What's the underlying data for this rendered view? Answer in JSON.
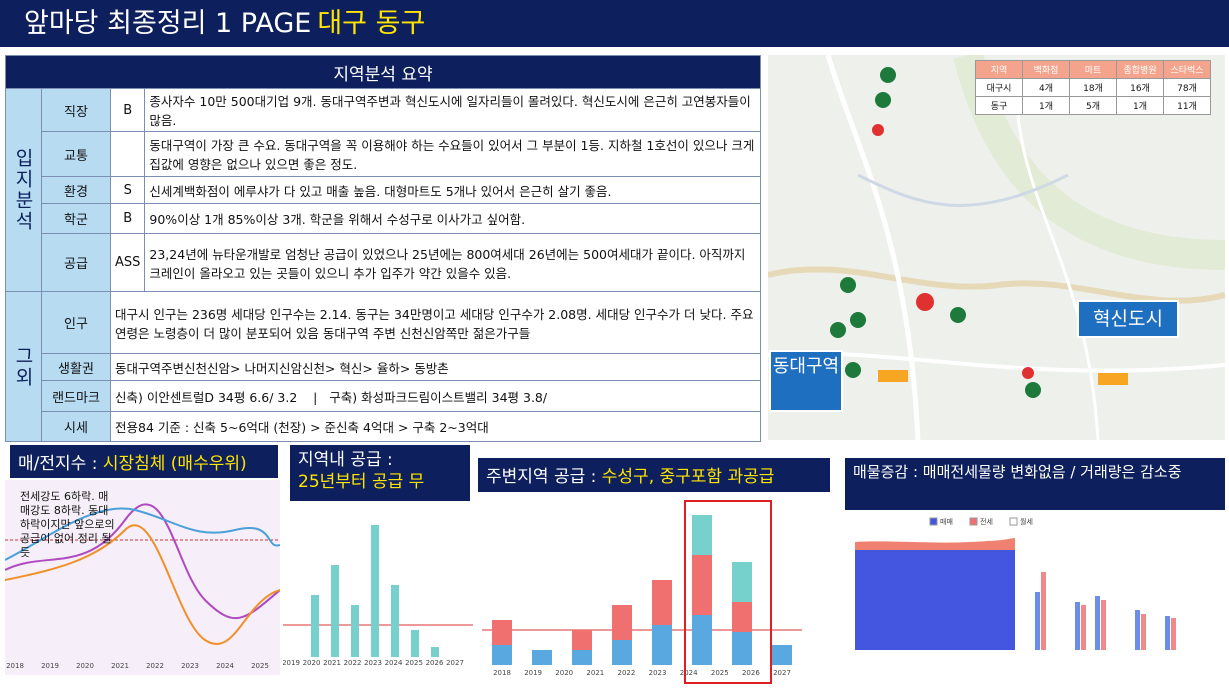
{
  "header": {
    "title": "앞마당 최종정리 1 PAGE",
    "highlight": "대구 동구"
  },
  "summary": {
    "title": "지역분석 요약",
    "groups": [
      {
        "label": "입지분석",
        "rows": [
          {
            "item": "직장",
            "grade": "B",
            "text": "종사자수 10만 500대기업 9개. 동대구역주변과 혁신도시에 일자리들이 몰려있다. 혁신도시에 은근히 고연봉자들이 많음."
          },
          {
            "item": "교통",
            "text": "동대구역이 가장 큰 수요. 동대구역을 꼭 이용해야 하는 수요들이 있어서 그 부분이 1등. 지하철 1호선이 있으나 크게 집값에 영향은 없으나 있으면 좋은 정도."
          },
          {
            "item": "환경",
            "grade": "S",
            "text": "신세계백화점이 에루샤가 다 있고 매출 높음. 대형마트도 5개나 있어서 은근히 살기 좋음."
          },
          {
            "item": "학군",
            "grade": "B",
            "text": "90%이상 1개 85%이상 3개. 학군을 위해서 수성구로 이사가고 싶어함."
          },
          {
            "item": "공급",
            "grade": "ASS",
            "text": "23,24년에 뉴타운개발로 엄청난 공급이 있었으나 25년에는 800여세대 26년에는 500여세대가 끝이다. 아직까지 크레인이 올라오고 있는 곳들이 있으니 추가 입주가 약간 있을수 있음."
          }
        ]
      },
      {
        "label": "그외",
        "rows": [
          {
            "item": "인구",
            "text": "대구시 인구는 236명 세대당 인구수는 2.14. 동구는 34만명이고 세대당 인구수가 2.08명. 세대당 인구수가 더 낮다. 주요 연령은 노령층이 더 많이 분포되어 있음 동대구역 주변 신천신암쪽만 젊은가구들"
          },
          {
            "item": "생활권",
            "text": "동대구역주변신천신암> 나머지신암신천> 혁신> 율하> 동방촌"
          },
          {
            "item": "랜드마크",
            "text": "신축) 이안센트럴D 34평 6.6/ 3.2    |   구축) 화성파크드림이스트밸리 34평 3.8/"
          },
          {
            "item": "시세",
            "text": "전용84 기준 : 신축 5~6억대 (천장) > 준신축 4억대 > 구축 2~3억대"
          }
        ]
      }
    ]
  },
  "map": {
    "table": {
      "headers": [
        "지역",
        "백화점",
        "마트",
        "종합병원",
        "스타벅스"
      ],
      "rows": [
        [
          "대구시",
          "4개",
          "18개",
          "16개",
          "78개"
        ],
        [
          "동구",
          "1개",
          "5개",
          "1개",
          "11개"
        ]
      ]
    },
    "label_east": "혁신도시",
    "label_station": "동대구역"
  },
  "panels": [
    {
      "title": "매/전지수 : ",
      "highlight": "시장침체 (매수우위)",
      "note": "전세강도 6하락. 매매강도 8하락. 동대하락이지만 앞으로의 공급이 없어 정리 될듯",
      "x_labels": [
        "2018",
        "2019",
        "2020",
        "2021",
        "2022",
        "2023",
        "2024",
        "2025"
      ]
    },
    {
      "title": "지역내 공급 :",
      "highlight": "25년부터 공급 무",
      "x_labels": [
        "2019",
        "2020",
        "2021",
        "2022",
        "2023",
        "2024",
        "2025",
        "2026",
        "2027"
      ]
    },
    {
      "title": "주변지역 공급 : ",
      "highlight": "수성구, 중구포함 과공급",
      "x_labels": [
        "2018",
        "2019",
        "2020",
        "2021",
        "2022",
        "2023",
        "2024",
        "2025",
        "2026",
        "2027"
      ]
    },
    {
      "title": "매물증감 : 매매전세물량 변화없음 / 거래량은 감소중",
      "legend": [
        "매매",
        "전세",
        "월세"
      ]
    }
  ]
}
